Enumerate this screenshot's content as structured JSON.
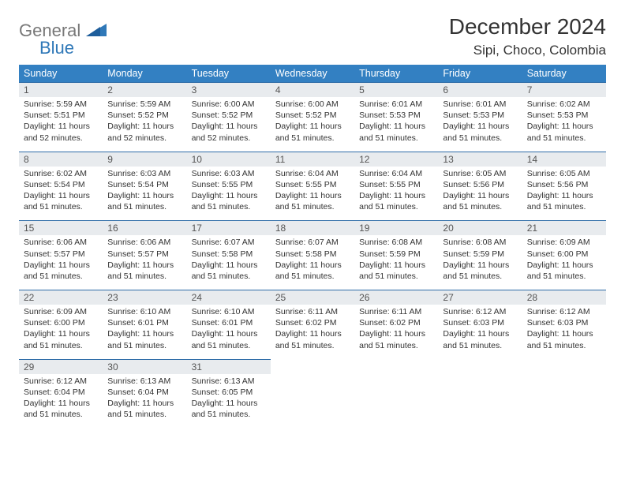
{
  "logo": {
    "text_general": "General",
    "text_blue": "Blue"
  },
  "header": {
    "title": "December 2024",
    "subtitle": "Sipi, Choco, Colombia"
  },
  "colors": {
    "header_bg": "#3380c2",
    "header_text": "#ffffff",
    "daynum_bg": "#e8ebee",
    "row_border": "#2f6da8",
    "body_text": "#333333",
    "logo_gray": "#787878",
    "logo_blue": "#2f78b8"
  },
  "day_names": [
    "Sunday",
    "Monday",
    "Tuesday",
    "Wednesday",
    "Thursday",
    "Friday",
    "Saturday"
  ],
  "weeks": [
    [
      {
        "n": "1",
        "sr": "5:59 AM",
        "ss": "5:51 PM",
        "dl": "11 hours and 52 minutes."
      },
      {
        "n": "2",
        "sr": "5:59 AM",
        "ss": "5:52 PM",
        "dl": "11 hours and 52 minutes."
      },
      {
        "n": "3",
        "sr": "6:00 AM",
        "ss": "5:52 PM",
        "dl": "11 hours and 52 minutes."
      },
      {
        "n": "4",
        "sr": "6:00 AM",
        "ss": "5:52 PM",
        "dl": "11 hours and 51 minutes."
      },
      {
        "n": "5",
        "sr": "6:01 AM",
        "ss": "5:53 PM",
        "dl": "11 hours and 51 minutes."
      },
      {
        "n": "6",
        "sr": "6:01 AM",
        "ss": "5:53 PM",
        "dl": "11 hours and 51 minutes."
      },
      {
        "n": "7",
        "sr": "6:02 AM",
        "ss": "5:53 PM",
        "dl": "11 hours and 51 minutes."
      }
    ],
    [
      {
        "n": "8",
        "sr": "6:02 AM",
        "ss": "5:54 PM",
        "dl": "11 hours and 51 minutes."
      },
      {
        "n": "9",
        "sr": "6:03 AM",
        "ss": "5:54 PM",
        "dl": "11 hours and 51 minutes."
      },
      {
        "n": "10",
        "sr": "6:03 AM",
        "ss": "5:55 PM",
        "dl": "11 hours and 51 minutes."
      },
      {
        "n": "11",
        "sr": "6:04 AM",
        "ss": "5:55 PM",
        "dl": "11 hours and 51 minutes."
      },
      {
        "n": "12",
        "sr": "6:04 AM",
        "ss": "5:55 PM",
        "dl": "11 hours and 51 minutes."
      },
      {
        "n": "13",
        "sr": "6:05 AM",
        "ss": "5:56 PM",
        "dl": "11 hours and 51 minutes."
      },
      {
        "n": "14",
        "sr": "6:05 AM",
        "ss": "5:56 PM",
        "dl": "11 hours and 51 minutes."
      }
    ],
    [
      {
        "n": "15",
        "sr": "6:06 AM",
        "ss": "5:57 PM",
        "dl": "11 hours and 51 minutes."
      },
      {
        "n": "16",
        "sr": "6:06 AM",
        "ss": "5:57 PM",
        "dl": "11 hours and 51 minutes."
      },
      {
        "n": "17",
        "sr": "6:07 AM",
        "ss": "5:58 PM",
        "dl": "11 hours and 51 minutes."
      },
      {
        "n": "18",
        "sr": "6:07 AM",
        "ss": "5:58 PM",
        "dl": "11 hours and 51 minutes."
      },
      {
        "n": "19",
        "sr": "6:08 AM",
        "ss": "5:59 PM",
        "dl": "11 hours and 51 minutes."
      },
      {
        "n": "20",
        "sr": "6:08 AM",
        "ss": "5:59 PM",
        "dl": "11 hours and 51 minutes."
      },
      {
        "n": "21",
        "sr": "6:09 AM",
        "ss": "6:00 PM",
        "dl": "11 hours and 51 minutes."
      }
    ],
    [
      {
        "n": "22",
        "sr": "6:09 AM",
        "ss": "6:00 PM",
        "dl": "11 hours and 51 minutes."
      },
      {
        "n": "23",
        "sr": "6:10 AM",
        "ss": "6:01 PM",
        "dl": "11 hours and 51 minutes."
      },
      {
        "n": "24",
        "sr": "6:10 AM",
        "ss": "6:01 PM",
        "dl": "11 hours and 51 minutes."
      },
      {
        "n": "25",
        "sr": "6:11 AM",
        "ss": "6:02 PM",
        "dl": "11 hours and 51 minutes."
      },
      {
        "n": "26",
        "sr": "6:11 AM",
        "ss": "6:02 PM",
        "dl": "11 hours and 51 minutes."
      },
      {
        "n": "27",
        "sr": "6:12 AM",
        "ss": "6:03 PM",
        "dl": "11 hours and 51 minutes."
      },
      {
        "n": "28",
        "sr": "6:12 AM",
        "ss": "6:03 PM",
        "dl": "11 hours and 51 minutes."
      }
    ],
    [
      {
        "n": "29",
        "sr": "6:12 AM",
        "ss": "6:04 PM",
        "dl": "11 hours and 51 minutes."
      },
      {
        "n": "30",
        "sr": "6:13 AM",
        "ss": "6:04 PM",
        "dl": "11 hours and 51 minutes."
      },
      {
        "n": "31",
        "sr": "6:13 AM",
        "ss": "6:05 PM",
        "dl": "11 hours and 51 minutes."
      },
      null,
      null,
      null,
      null
    ]
  ],
  "labels": {
    "sunrise": "Sunrise:",
    "sunset": "Sunset:",
    "daylight": "Daylight:"
  }
}
